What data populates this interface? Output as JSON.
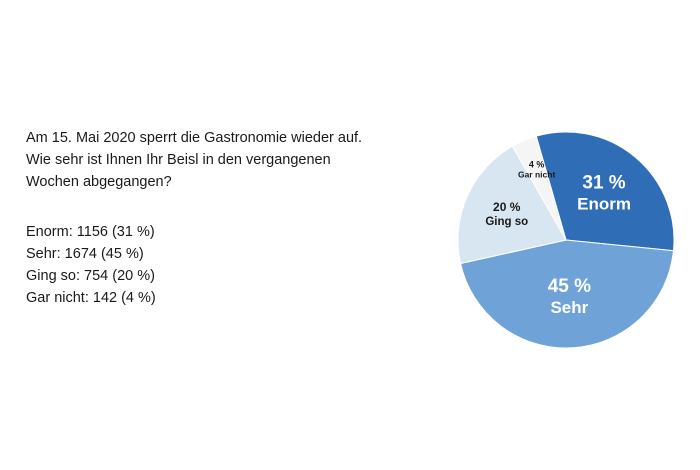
{
  "question": {
    "lines": [
      "Am 15. Mai 2020 sperrt die Gastronomie wieder auf.",
      "Wie sehr ist Ihnen Ihr Beisl in den vergangenen",
      "Wochen abgegangen?"
    ]
  },
  "results": [
    "Enorm: 1156 (31 %)",
    "Sehr: 1674 (45 %)",
    "Ging so: 754 (20 %)",
    "Gar nicht: 142 (4 %)"
  ],
  "chart_data": {
    "type": "pie",
    "start_angle_deg": -16,
    "direction": "clockwise",
    "slices": [
      {
        "name": "Enorm",
        "value": 1156,
        "percent": 31,
        "percent_label": "31 %",
        "color": "#2f6eb6",
        "text_color": "#ffffff"
      },
      {
        "name": "Sehr",
        "value": 1674,
        "percent": 45,
        "percent_label": "45 %",
        "color": "#6fa3d8",
        "text_color": "#ffffff"
      },
      {
        "name": "Ging so",
        "value": 754,
        "percent": 20,
        "percent_label": "20 %",
        "color": "#d8e6f2",
        "text_color": "#1a1a1a"
      },
      {
        "name": "Gar nicht",
        "value": 142,
        "percent": 4,
        "percent_label": "4 %",
        "color": "#f5f5f5",
        "text_color": "#1a1a1a"
      }
    ]
  }
}
